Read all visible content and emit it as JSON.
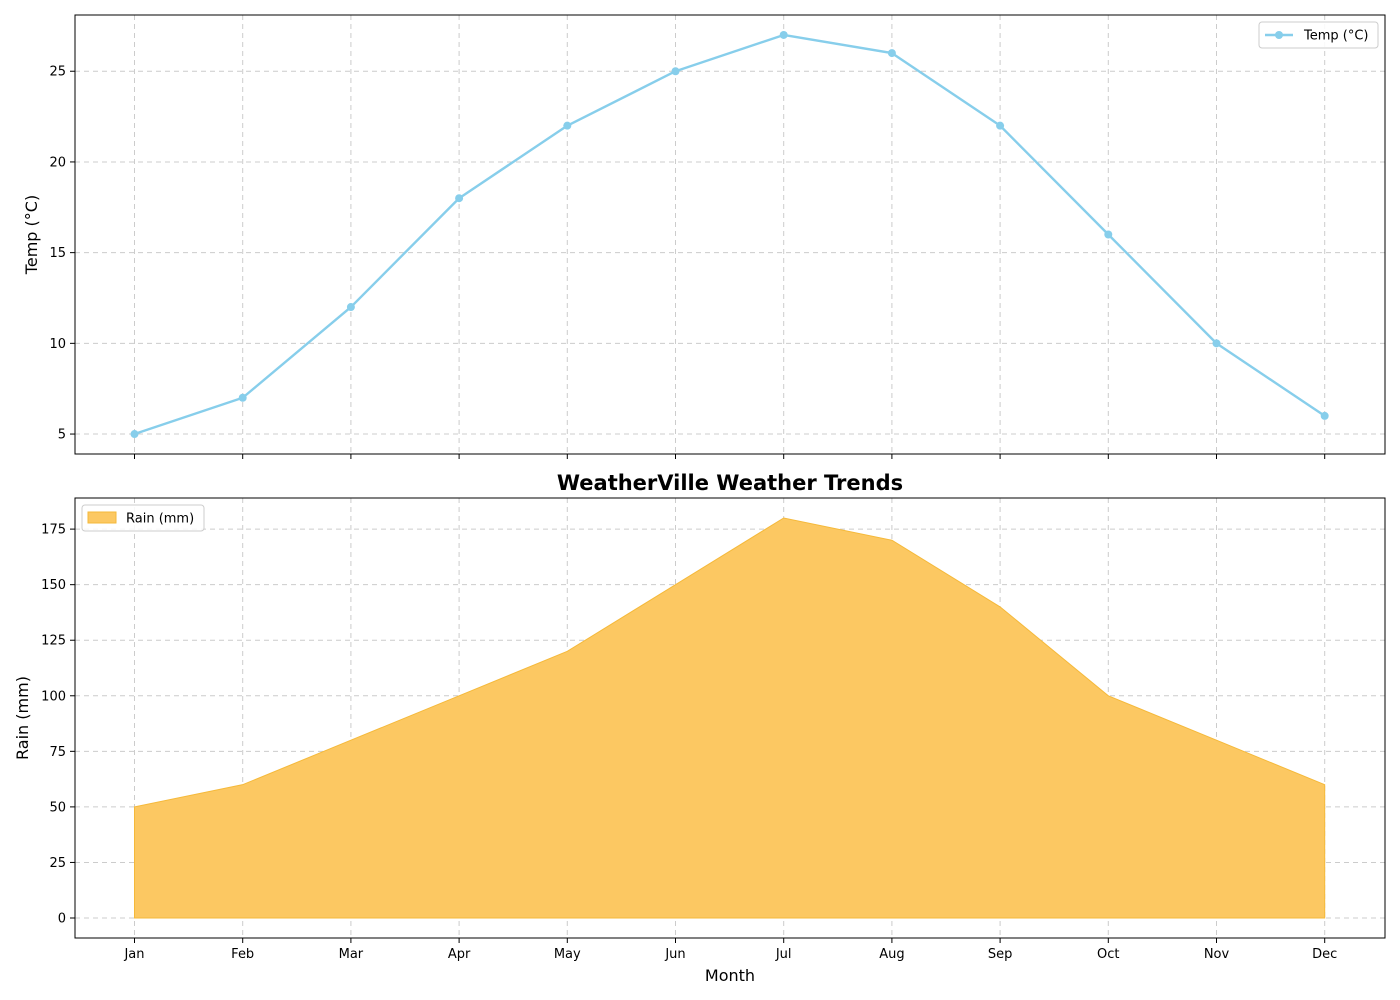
{
  "chart_data": [
    {
      "type": "line",
      "categories": [
        "Jan",
        "Feb",
        "Mar",
        "Apr",
        "May",
        "Jun",
        "Jul",
        "Aug",
        "Sep",
        "Oct",
        "Nov",
        "Dec"
      ],
      "series": [
        {
          "name": "Temp (°C)",
          "values": [
            5,
            7,
            12,
            18,
            22,
            25,
            27,
            26,
            22,
            16,
            10,
            6
          ],
          "color": "#87ceeb"
        }
      ],
      "title": "",
      "xlabel": "",
      "ylabel": "Temp (°C)",
      "ylim": [
        3.9,
        28.1
      ],
      "yticks": [
        5,
        10,
        15,
        20,
        25
      ],
      "grid": true,
      "legend": "top-right"
    },
    {
      "type": "area",
      "categories": [
        "Jan",
        "Feb",
        "Mar",
        "Apr",
        "May",
        "Jun",
        "Jul",
        "Aug",
        "Sep",
        "Oct",
        "Nov",
        "Dec"
      ],
      "series": [
        {
          "name": "Rain (mm)",
          "values": [
            50,
            60,
            80,
            100,
            120,
            150,
            180,
            170,
            140,
            100,
            80,
            60
          ],
          "color": "#fcc862"
        }
      ],
      "title": "WeatherVille Weather Trends",
      "xlabel": "Month",
      "ylabel": "Rain (mm)",
      "ylim": [
        -9,
        189
      ],
      "yticks": [
        0,
        25,
        50,
        75,
        100,
        125,
        150,
        175
      ],
      "grid": true,
      "legend": "top-left"
    }
  ]
}
